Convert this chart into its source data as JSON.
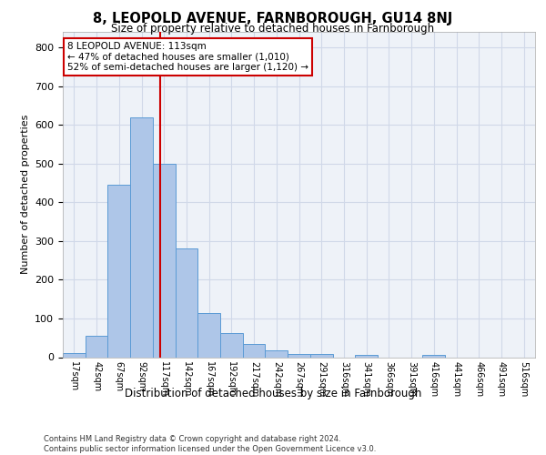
{
  "title": "8, LEOPOLD AVENUE, FARNBOROUGH, GU14 8NJ",
  "subtitle": "Size of property relative to detached houses in Farnborough",
  "xlabel": "Distribution of detached houses by size in Farnborough",
  "ylabel": "Number of detached properties",
  "footer_line1": "Contains HM Land Registry data © Crown copyright and database right 2024.",
  "footer_line2": "Contains public sector information licensed under the Open Government Licence v3.0.",
  "bar_labels": [
    "17sqm",
    "42sqm",
    "67sqm",
    "92sqm",
    "117sqm",
    "142sqm",
    "167sqm",
    "192sqm",
    "217sqm",
    "242sqm",
    "267sqm",
    "291sqm",
    "316sqm",
    "341sqm",
    "366sqm",
    "391sqm",
    "416sqm",
    "441sqm",
    "466sqm",
    "491sqm",
    "516sqm"
  ],
  "bar_values": [
    10,
    55,
    445,
    620,
    500,
    280,
    115,
    62,
    33,
    17,
    8,
    8,
    0,
    7,
    0,
    0,
    5,
    0,
    0,
    0,
    0
  ],
  "bar_color": "#aec6e8",
  "bar_edge_color": "#5b9bd5",
  "grid_color": "#d0d8e8",
  "background_color": "#eef2f8",
  "vline_color": "#cc0000",
  "vline_x_index": 3.84,
  "annotation_text": "8 LEOPOLD AVENUE: 113sqm\n← 47% of detached houses are smaller (1,010)\n52% of semi-detached houses are larger (1,120) →",
  "annotation_box_color": "#ffffff",
  "annotation_box_edge": "#cc0000",
  "ylim": [
    0,
    840
  ],
  "yticks": [
    0,
    100,
    200,
    300,
    400,
    500,
    600,
    700,
    800
  ]
}
